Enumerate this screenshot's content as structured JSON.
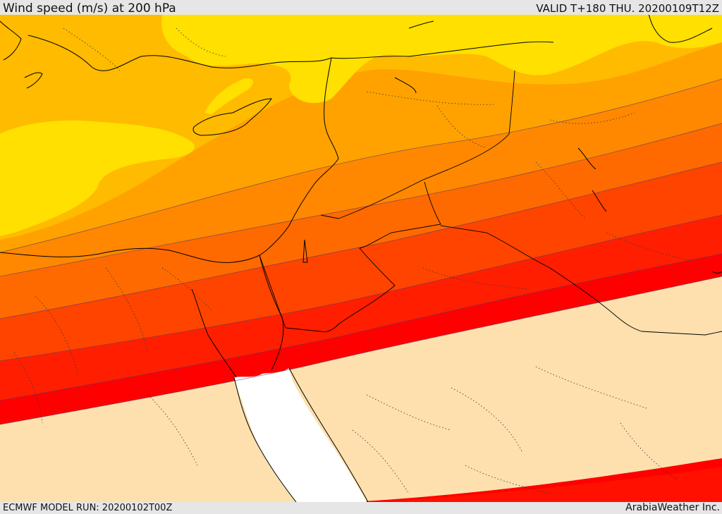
{
  "header": {
    "title": "Wind speed (m/s) at 200 hPa",
    "valid": "VALID T+180 THU. 20200109T12Z"
  },
  "footer": {
    "model_run": "ECMWF MODEL RUN: 20200102T00Z",
    "credit": "ArabiaWeather Inc."
  },
  "map_colors": {
    "calm": "#fde0ae",
    "band_1": "#ffe000",
    "band_2": "#ffbb00",
    "band_3": "#ffa200",
    "band_4": "#ff8800",
    "band_5": "#ff6a00",
    "band_6": "#ff4400",
    "band_7": "#ff1f00",
    "band_8": "#ff0000",
    "sea_no_data": "#ffffff",
    "coastline": "#000000"
  }
}
